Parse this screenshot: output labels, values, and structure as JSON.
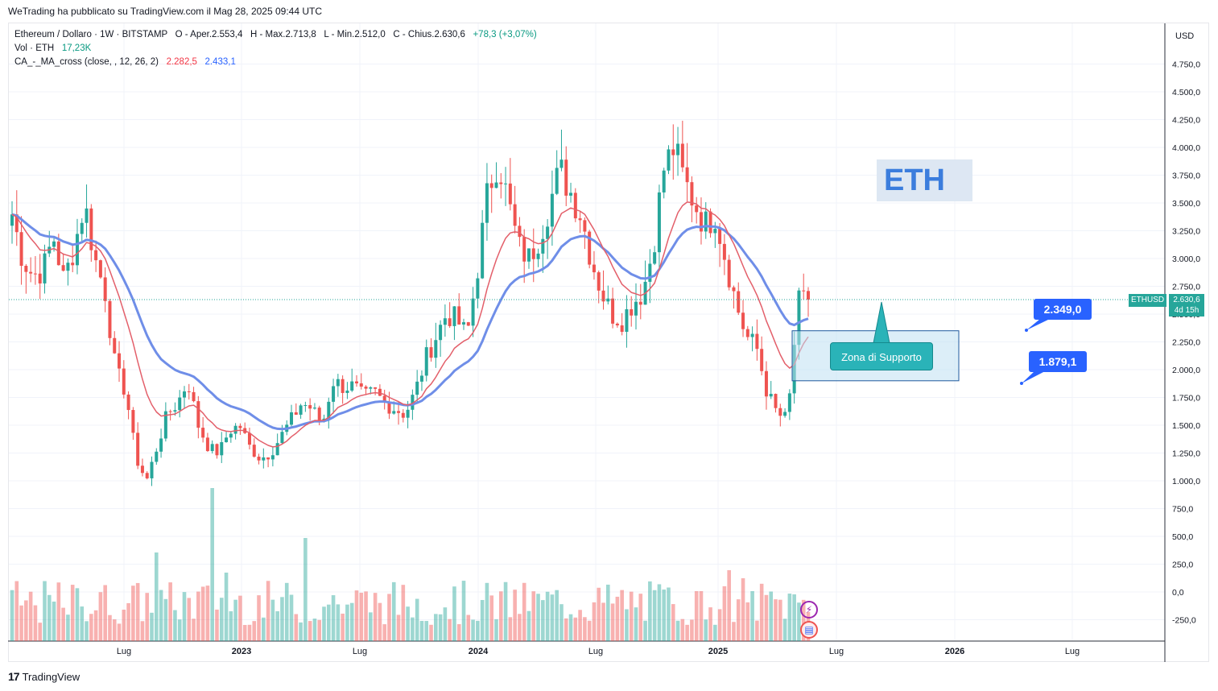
{
  "header": {
    "published": "WeTrading ha pubblicato su TradingView.com il Mag 28, 2025 09:44 UTC"
  },
  "legend": {
    "symbol": "Ethereum / Dollaro · 1W · BITSTAMP",
    "o_label": "O",
    "o_value": "Aper.2.553,4",
    "h_label": "H",
    "h_value": "Max.2.713,8",
    "l_label": "L",
    "l_value": "Min.2.512,0",
    "c_label": "C",
    "c_value": "Chius.2.630,6",
    "change": "+78,3 (+3,07%)",
    "vol_label": "Vol · ETH",
    "vol_value": "17,23K",
    "ind_label": "CA_-_MA_cross (close, , 12, 26, 2)",
    "ind_fast": "2.282,5",
    "ind_slow": "2.433,1"
  },
  "axis": {
    "currency": "USD"
  },
  "annotations": {
    "eth_text": "ETH",
    "support_label": "Zona di Supporto",
    "tag_upper": "2.349,0",
    "tag_lower": "1.879,1"
  },
  "last_price": {
    "symbol": "ETHUSD",
    "price": "2.630,6",
    "countdown": "4d 15h"
  },
  "footer": {
    "brand": "TradingView"
  },
  "colors": {
    "up": "#26a69a",
    "down": "#ef5350",
    "fast_ma": "#e35f6a",
    "slow_ma": "#6f8ee8",
    "accent": "#2962ff"
  },
  "chart_data": {
    "type": "line",
    "title": "Ethereum / Dollaro · 1W · BITSTAMP",
    "y_ticks": [
      "4.750,0",
      "4.500,0",
      "4.250,0",
      "4.000,0",
      "3.750,0",
      "3.500,0",
      "3.250,0",
      "3.000,0",
      "2.750,0",
      "2.500,0",
      "2.250,0",
      "2.000,0",
      "1.750,0",
      "1.500,0",
      "1.250,0",
      "1.000,0",
      "750,0",
      "500,0",
      "250,0",
      "0,0",
      "-250,0"
    ],
    "y_tick_values": [
      4750,
      4500,
      4250,
      4000,
      3750,
      3500,
      3250,
      3000,
      2750,
      2500,
      2250,
      2000,
      1750,
      1500,
      1250,
      1000,
      750,
      500,
      250,
      0,
      -250
    ],
    "x_ticks": [
      "Lug",
      "2023",
      "Lug",
      "2024",
      "Lug",
      "2025",
      "Lug",
      "2026",
      "Lug"
    ],
    "ylim": [
      -400,
      4950
    ],
    "last_close": 2630.6,
    "support_zone": [
      1900,
      2350
    ],
    "series": [
      {
        "name": "Ethereum / Dollaro",
        "values_approx": [
          3400,
          3000,
          2850,
          2900,
          3200,
          2800,
          3100,
          3500,
          3000,
          2700,
          2000,
          1800,
          1200,
          1000,
          1300,
          1600,
          1700,
          1900,
          1500,
          1300,
          1250,
          1450,
          1500,
          1300,
          1200,
          1250,
          1400,
          1550,
          1700,
          1650,
          1500,
          1900,
          1850,
          1850,
          1750,
          1800,
          1700,
          1650,
          1600,
          1800,
          2100,
          2300,
          2500,
          2450,
          2300,
          2900,
          3600,
          3900,
          3500,
          3100,
          3000,
          3200,
          3500,
          3800,
          3600,
          3400,
          3000,
          2700,
          2500,
          2450,
          2600,
          2700,
          3100,
          3800,
          4000,
          3700,
          3500,
          3300,
          3400,
          3000,
          2600,
          2300,
          2200,
          1800,
          1600,
          1550,
          2600,
          2630.6
        ]
      },
      {
        "name": "CA_-_MA_cross fast",
        "last": 2282.5
      },
      {
        "name": "CA_-_MA_cross slow",
        "last": 2433.1
      }
    ]
  }
}
